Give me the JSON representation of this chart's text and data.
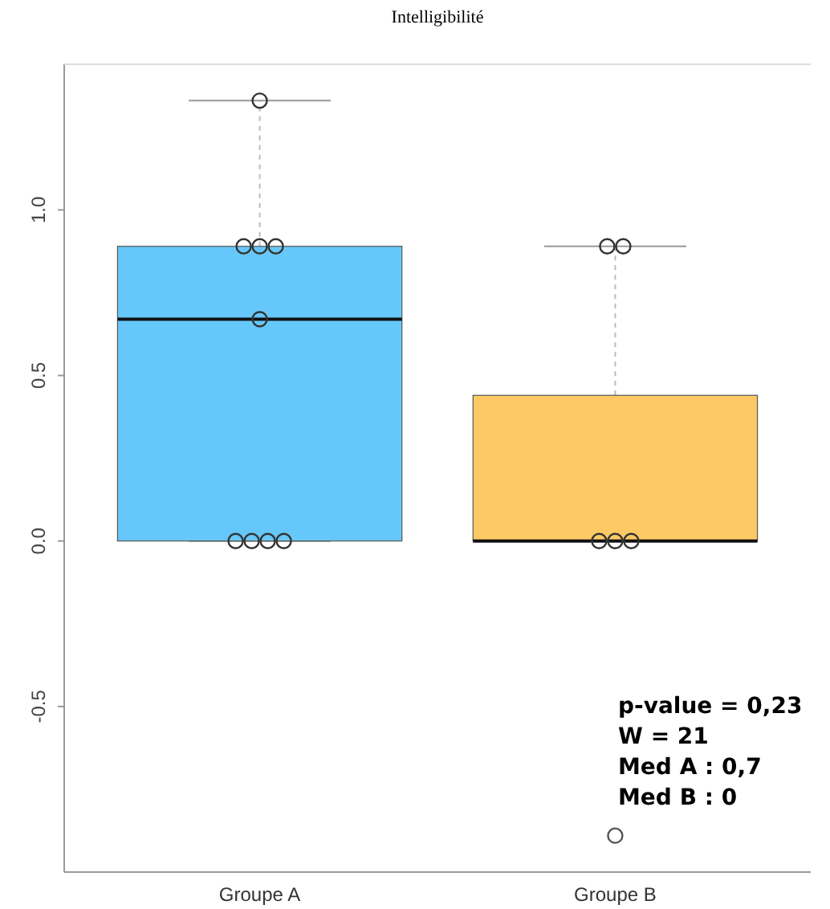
{
  "chart_data": {
    "type": "box",
    "title": "Intelligibilité",
    "categories": [
      "Groupe A",
      "Groupe B"
    ],
    "colors": [
      "#66c8fa",
      "#fdc964"
    ],
    "boxes": [
      {
        "low": 0,
        "q1": 0,
        "median": 0.67,
        "q3": 0.89,
        "high": 1.33
      },
      {
        "low": 0,
        "q1": 0,
        "median": 0,
        "q3": 0.44,
        "high": 0.89,
        "outliers": [
          -0.89
        ]
      }
    ],
    "series": [
      {
        "type": "scatter",
        "color": "#333333",
        "x": [
          "Groupe A",
          "Groupe A",
          "Groupe A",
          "Groupe A",
          "Groupe A",
          "Groupe A",
          "Groupe A",
          "Groupe A",
          "Groupe A",
          "Groupe B",
          "Groupe B",
          "Groupe B",
          "Groupe B",
          "Groupe B"
        ],
        "values": [
          1.33,
          0.89,
          0.89,
          0.89,
          0.67,
          0,
          0,
          0,
          0,
          0.89,
          0.89,
          0,
          0,
          0
        ]
      }
    ],
    "marker": "circle",
    "ylim": [
      -1.0,
      1.44
    ],
    "yticks": [
      {
        "value": -0.5,
        "label": "-0.5"
      },
      {
        "value": 0,
        "label": "0.0"
      },
      {
        "value": 0.5,
        "label": "0.5"
      },
      {
        "value": 1,
        "label": "1.0"
      }
    ],
    "annotations": [
      "p-value = 0,23",
      "W = 21",
      "Med A : 0,7",
      "Med B : 0"
    ]
  }
}
